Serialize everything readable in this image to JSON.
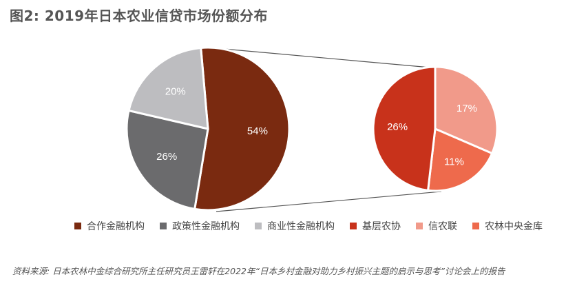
{
  "title": "图2: 2019年日本农业信贷市场份额分布",
  "chart_data": [
    {
      "type": "pie",
      "title": "2019年日本农业信贷市场份额分布",
      "name": "main-pie",
      "categories": [
        "合作金融机构",
        "政策性金融机构",
        "商业性金融机构"
      ],
      "values": [
        54,
        26,
        20
      ],
      "labels": [
        "54%",
        "26%",
        "20%"
      ],
      "colors": [
        "#7a2a10",
        "#6b6b6d",
        "#bdbdc0"
      ]
    },
    {
      "type": "pie",
      "name": "breakdown-pie",
      "parent_category": "合作金融机构",
      "categories": [
        "基层农协",
        "信农联",
        "农林中央金库"
      ],
      "values": [
        26,
        17,
        11
      ],
      "labels": [
        "26%",
        "17%",
        "11%"
      ],
      "colors": [
        "#c8321b",
        "#f19a8a",
        "#ee6a4c"
      ]
    }
  ],
  "legend": [
    {
      "label": "合作金融机构",
      "color": "#7a2a10"
    },
    {
      "label": "政策性金融机构",
      "color": "#6b6b6d"
    },
    {
      "label": "商业性金融机构",
      "color": "#bdbdc0"
    },
    {
      "label": "基层农协",
      "color": "#c8321b"
    },
    {
      "label": "信农联",
      "color": "#f19a8a"
    },
    {
      "label": "农林中央金库",
      "color": "#ee6a4c"
    }
  ],
  "source": "资料来源: 日本农林中金综合研究所主任研究员王雷轩在2022年“日本乡村金融对助力乡村振兴主题的启示与思考”讨论会上的报告"
}
